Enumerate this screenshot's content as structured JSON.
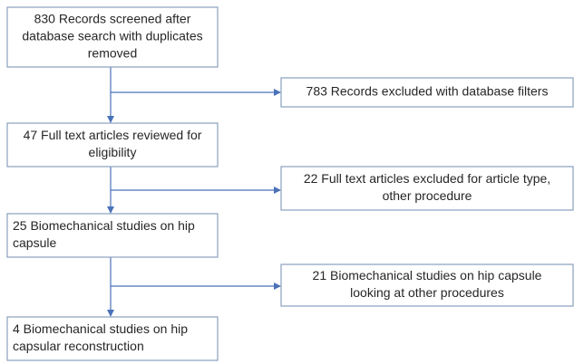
{
  "nodes": [
    {
      "lines": [
        "830 Records screened after",
        "database search with duplicates",
        "removed"
      ]
    },
    {
      "lines": [
        "47 Full text articles reviewed for",
        "eligibility"
      ]
    },
    {
      "lines": [
        "25 Biomechanical studies on hip",
        "capsule"
      ]
    },
    {
      "lines": [
        "4 Biomechanical studies on hip",
        "capsular reconstruction"
      ]
    },
    {
      "lines": [
        "783 Records excluded with database filters"
      ]
    },
    {
      "lines": [
        "22 Full text articles excluded for article type,",
        "other procedure"
      ]
    },
    {
      "lines": [
        "21 Biomechanical studies on hip capsule",
        "looking at other procedures"
      ]
    }
  ]
}
